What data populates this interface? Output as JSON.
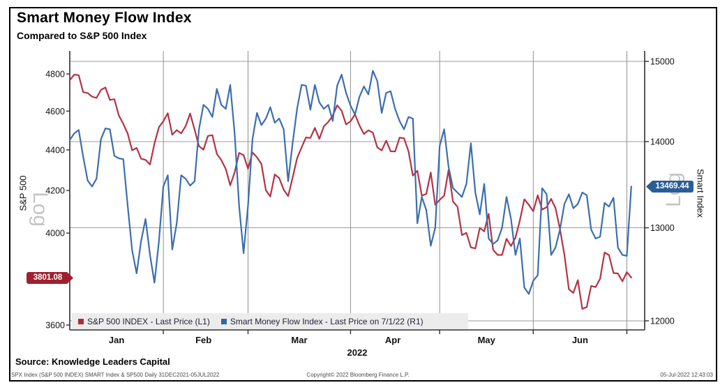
{
  "header": {
    "title": "Smart Money Flow Index",
    "subtitle": "Compared to S&P 500 Index"
  },
  "axes": {
    "left": {
      "label": "S&P 500",
      "scale_label": "Log",
      "ticks": [
        4800,
        4600,
        4400,
        4200,
        4000,
        3800,
        3600
      ]
    },
    "right": {
      "label": "Smart Index",
      "scale_label": "Log",
      "ticks": [
        15000,
        14000,
        13000,
        12000
      ]
    },
    "x": {
      "month_labels": [
        "Jan",
        "Feb",
        "Mar",
        "Apr",
        "May",
        "Jun"
      ],
      "year_label": "2022"
    }
  },
  "badges": {
    "left": {
      "value": "3801.08",
      "color": "#a02030"
    },
    "right": {
      "value": "13469.44",
      "color": "#2b5d96"
    }
  },
  "legend": [
    {
      "label": "S&P 500 INDEX - Last Price (L1)",
      "color": "#b02a3a"
    },
    {
      "label": "Smart Money Flow Index - Last Price on 7/1/22 (R1)",
      "color": "#2e67a8"
    }
  ],
  "footer": {
    "source": "Source: Knowledge Leaders Capital",
    "left": "SPX Index (S&P 500 INDEX) SMART Index & SP500  Daily 31DEC2021-05JUL2022",
    "center": "Copyright© 2022 Bloomberg Finance L.P.",
    "right": "05-Jul-2022 12:43:03"
  },
  "chart_data": {
    "type": "line",
    "title": "Smart Money Flow Index",
    "subtitle": "Compared to S&P 500 Index",
    "x_axis": {
      "unit": "consecutive trading days",
      "start_date": "31DEC2021",
      "end_date": "05JUL2022",
      "domain": [
        0,
        129
      ],
      "month_gridline_idx": [
        21,
        40,
        63,
        83,
        104,
        125
      ],
      "month_label_center_idx": [
        10.5,
        30,
        51.5,
        72.5,
        93.5,
        114.5
      ],
      "grid": true
    },
    "left_axis": {
      "label": "S&P 500",
      "scale": "log",
      "range": [
        3600,
        4800
      ],
      "last_price": 3801.08
    },
    "right_axis": {
      "label": "Smart Index",
      "scale": "log",
      "range": [
        12000,
        15000
      ],
      "last_price": 13469.44
    },
    "series": [
      {
        "name": "S&P 500 INDEX - Last Price (L1)",
        "axis": "left",
        "color": "#b23346",
        "values": [
          4766,
          4796,
          4793,
          4701,
          4696,
          4677,
          4670,
          4713,
          4726,
          4659,
          4663,
          4577,
          4533,
          4483,
          4398,
          4410,
          4356,
          4350,
          4327,
          4432,
          4516,
          4547,
          4589,
          4477,
          4501,
          4484,
          4522,
          4587,
          4504,
          4419,
          4401,
          4471,
          4475,
          4380,
          4349,
          4305,
          4225,
          4288,
          4385,
          4374,
          4306,
          4387,
          4363,
          4329,
          4201,
          4171,
          4278,
          4260,
          4204,
          4173,
          4262,
          4358,
          4412,
          4463,
          4461,
          4512,
          4456,
          4520,
          4543,
          4576,
          4631,
          4602,
          4530,
          4546,
          4583,
          4525,
          4481,
          4500,
          4488,
          4413,
          4397,
          4447,
          4393,
          4392,
          4462,
          4459,
          4393,
          4272,
          4296,
          4175,
          4184,
          4287,
          4132,
          4155,
          4175,
          4300,
          4147,
          4123,
          3991,
          4001,
          3935,
          3930,
          4024,
          4008,
          4089,
          3924,
          3901,
          3901,
          3974,
          3941,
          3979,
          4058,
          4158,
          4132,
          4101,
          4177,
          4109,
          4121,
          4160,
          4116,
          4018,
          3901,
          3750,
          3735,
          3790,
          3667,
          3675,
          3765,
          3760,
          3796,
          3912,
          3900,
          3821,
          3819,
          3785,
          3825,
          3801.08
        ]
      },
      {
        "name": "Smart Money Flow Index - Last Price on 7/1/22 (R1)",
        "axis": "right",
        "color": "#3c6ead",
        "values": [
          14020,
          14100,
          14140,
          13820,
          13540,
          13470,
          13560,
          14030,
          14160,
          14150,
          13830,
          13800,
          13790,
          13250,
          12750,
          12500,
          12850,
          13100,
          12700,
          12400,
          12850,
          13470,
          13600,
          12760,
          13050,
          13600,
          13560,
          13480,
          13530,
          14150,
          14450,
          14400,
          14300,
          14650,
          14450,
          14400,
          14700,
          14100,
          13250,
          12720,
          13250,
          14030,
          14350,
          14200,
          14280,
          14420,
          14230,
          14280,
          14150,
          13530,
          13980,
          14400,
          14700,
          14690,
          14390,
          14700,
          14480,
          14400,
          14450,
          14250,
          14690,
          14830,
          14600,
          14440,
          14330,
          14550,
          14680,
          14580,
          14880,
          14750,
          14350,
          14600,
          14620,
          14400,
          14250,
          14150,
          14300,
          14280,
          13050,
          13350,
          13200,
          12800,
          13000,
          13950,
          14150,
          13700,
          13450,
          13400,
          13350,
          13500,
          13980,
          13400,
          13150,
          13500,
          12880,
          12820,
          12860,
          13000,
          13350,
          13100,
          12700,
          12880,
          12350,
          12280,
          12420,
          12480,
          13450,
          13380,
          12700,
          12780,
          12980,
          13270,
          13380,
          13220,
          13270,
          13400,
          13370,
          12980,
          12880,
          12900,
          13280,
          13240,
          13340,
          12780,
          12700,
          12690,
          13469.44
        ]
      }
    ]
  }
}
